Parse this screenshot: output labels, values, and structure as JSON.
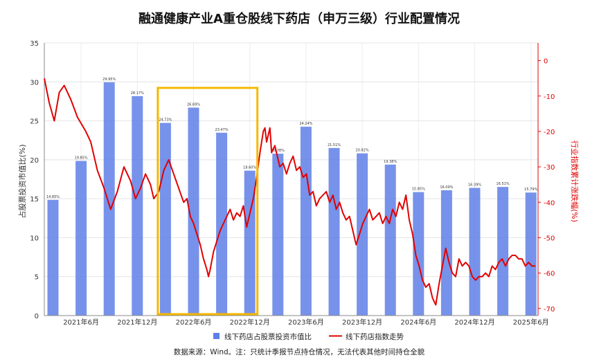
{
  "chart_data": {
    "type": "bar+line",
    "title": "融通健康产业A重仓股线下药店（申万三级）行业配置情况",
    "left_axis": {
      "label": "占股票投资市值比(%)",
      "range": [
        0,
        35
      ],
      "ticks": [
        "0",
        "5",
        "10",
        "15",
        "20",
        "25",
        "30",
        "35"
      ]
    },
    "right_axis": {
      "label": "行业指数累计涨跌幅(%)",
      "range": [
        -72,
        5
      ],
      "ticks": [
        "0",
        "-10",
        "-20",
        "-30",
        "-40",
        "-50",
        "-60",
        "-70"
      ]
    },
    "x_tick_labels": [
      "2021年6月",
      "2021年12月",
      "2022年6月",
      "2022年12月",
      "2023年6月",
      "2023年12月",
      "2024年6月",
      "2024年12月",
      "2025年6月"
    ],
    "bar_series": {
      "name": "线下药店占股票投资市值比",
      "color": "#5f7fe6",
      "values": [
        14.85,
        19.85,
        29.95,
        28.17,
        24.73,
        26.69,
        23.47,
        18.6,
        20.78,
        24.24,
        21.51,
        20.82,
        19.38,
        15.85,
        16.09,
        16.39,
        16.51,
        15.79
      ],
      "labels": [
        "14.85%",
        "19.85%",
        "29.95%",
        "28.17%",
        "24.73%",
        "26.69%",
        "23.47%",
        "18.60%",
        "20.78%",
        "24.24%",
        "21.51%",
        "20.82%",
        "19.38%",
        "15.85%",
        "16.09%",
        "16.39%",
        "16.51%",
        "15.79%"
      ]
    },
    "line_series": {
      "name": "线下药店指数走势",
      "color": "#e00000",
      "points": [
        [
          0,
          -5
        ],
        [
          3,
          -12
        ],
        [
          6,
          -17
        ],
        [
          9,
          -9
        ],
        [
          12,
          -7
        ],
        [
          16,
          -11
        ],
        [
          20,
          -16
        ],
        [
          25,
          -20
        ],
        [
          28,
          -23
        ],
        [
          32,
          -31
        ],
        [
          36,
          -36
        ],
        [
          40,
          -42
        ],
        [
          44,
          -37
        ],
        [
          48,
          -30
        ],
        [
          52,
          -34
        ],
        [
          55,
          -39
        ],
        [
          58,
          -36
        ],
        [
          61,
          -32
        ],
        [
          64,
          -35
        ],
        [
          66,
          -39
        ],
        [
          69,
          -37
        ],
        [
          72,
          -31
        ],
        [
          75,
          -28
        ],
        [
          78,
          -32
        ],
        [
          81,
          -36
        ],
        [
          84,
          -40
        ],
        [
          86,
          -39
        ],
        [
          88,
          -44
        ],
        [
          90,
          -46
        ],
        [
          92,
          -49
        ],
        [
          94,
          -52
        ],
        [
          96,
          -56
        ],
        [
          98,
          -59
        ],
        [
          99,
          -61
        ],
        [
          100,
          -59
        ],
        [
          102,
          -54
        ],
        [
          104,
          -51
        ],
        [
          106,
          -48
        ],
        [
          108,
          -46
        ],
        [
          110,
          -44
        ],
        [
          112,
          -42
        ],
        [
          114,
          -45
        ],
        [
          116,
          -43
        ],
        [
          118,
          -44
        ],
        [
          120,
          -41
        ],
        [
          122,
          -47
        ],
        [
          124,
          -43
        ],
        [
          126,
          -39
        ],
        [
          128,
          -33
        ],
        [
          130,
          -26
        ],
        [
          132,
          -20
        ],
        [
          133,
          -19
        ],
        [
          134,
          -23
        ],
        [
          136,
          -19
        ],
        [
          137,
          -26
        ],
        [
          139,
          -24
        ],
        [
          141,
          -28
        ],
        [
          142,
          -30
        ],
        [
          144,
          -29
        ],
        [
          146,
          -32
        ],
        [
          148,
          -29
        ],
        [
          150,
          -27
        ],
        [
          152,
          -31
        ],
        [
          154,
          -30
        ],
        [
          156,
          -33
        ],
        [
          158,
          -32
        ],
        [
          160,
          -38
        ],
        [
          162,
          -37
        ],
        [
          164,
          -41
        ],
        [
          166,
          -39
        ],
        [
          168,
          -38
        ],
        [
          170,
          -37
        ],
        [
          172,
          -40
        ],
        [
          174,
          -38
        ],
        [
          176,
          -42
        ],
        [
          178,
          -40
        ],
        [
          180,
          -43
        ],
        [
          182,
          -45
        ],
        [
          184,
          -44
        ],
        [
          186,
          -48
        ],
        [
          188,
          -52
        ],
        [
          190,
          -49
        ],
        [
          192,
          -46
        ],
        [
          194,
          -44
        ],
        [
          196,
          -42
        ],
        [
          198,
          -45
        ],
        [
          200,
          -44
        ],
        [
          202,
          -43
        ],
        [
          204,
          -46
        ],
        [
          206,
          -44
        ],
        [
          208,
          -46
        ],
        [
          210,
          -42
        ],
        [
          212,
          -44
        ],
        [
          214,
          -40
        ],
        [
          216,
          -42
        ],
        [
          218,
          -38
        ],
        [
          220,
          -45
        ],
        [
          222,
          -49
        ],
        [
          224,
          -55
        ],
        [
          226,
          -58
        ],
        [
          228,
          -62
        ],
        [
          230,
          -64
        ],
        [
          232,
          -63
        ],
        [
          234,
          -67
        ],
        [
          236,
          -69
        ],
        [
          238,
          -63
        ],
        [
          240,
          -58
        ],
        [
          242,
          -53
        ],
        [
          244,
          -57
        ],
        [
          246,
          -60
        ],
        [
          248,
          -61
        ],
        [
          250,
          -56
        ],
        [
          252,
          -58
        ],
        [
          254,
          -57
        ],
        [
          256,
          -58
        ],
        [
          258,
          -61
        ],
        [
          260,
          -62
        ],
        [
          262,
          -61
        ],
        [
          264,
          -61
        ],
        [
          266,
          -60
        ],
        [
          268,
          -61
        ],
        [
          270,
          -58
        ],
        [
          272,
          -59
        ],
        [
          274,
          -57
        ],
        [
          276,
          -56
        ],
        [
          278,
          -58
        ],
        [
          280,
          -56
        ],
        [
          282,
          -55
        ],
        [
          284,
          -55
        ],
        [
          286,
          -56
        ],
        [
          288,
          -56
        ],
        [
          290,
          -58
        ],
        [
          292,
          -57
        ],
        [
          294,
          -58
        ],
        [
          296,
          -58
        ]
      ]
    },
    "highlight_box": {
      "color": "#f5b800",
      "from_bar": 4,
      "to_bar": 7
    },
    "legend_position": "bottom",
    "grid": true
  },
  "source_note": "数据来源：Wind。注：只统计季报节点持仓情况，无法代表其他时间持仓全貌"
}
